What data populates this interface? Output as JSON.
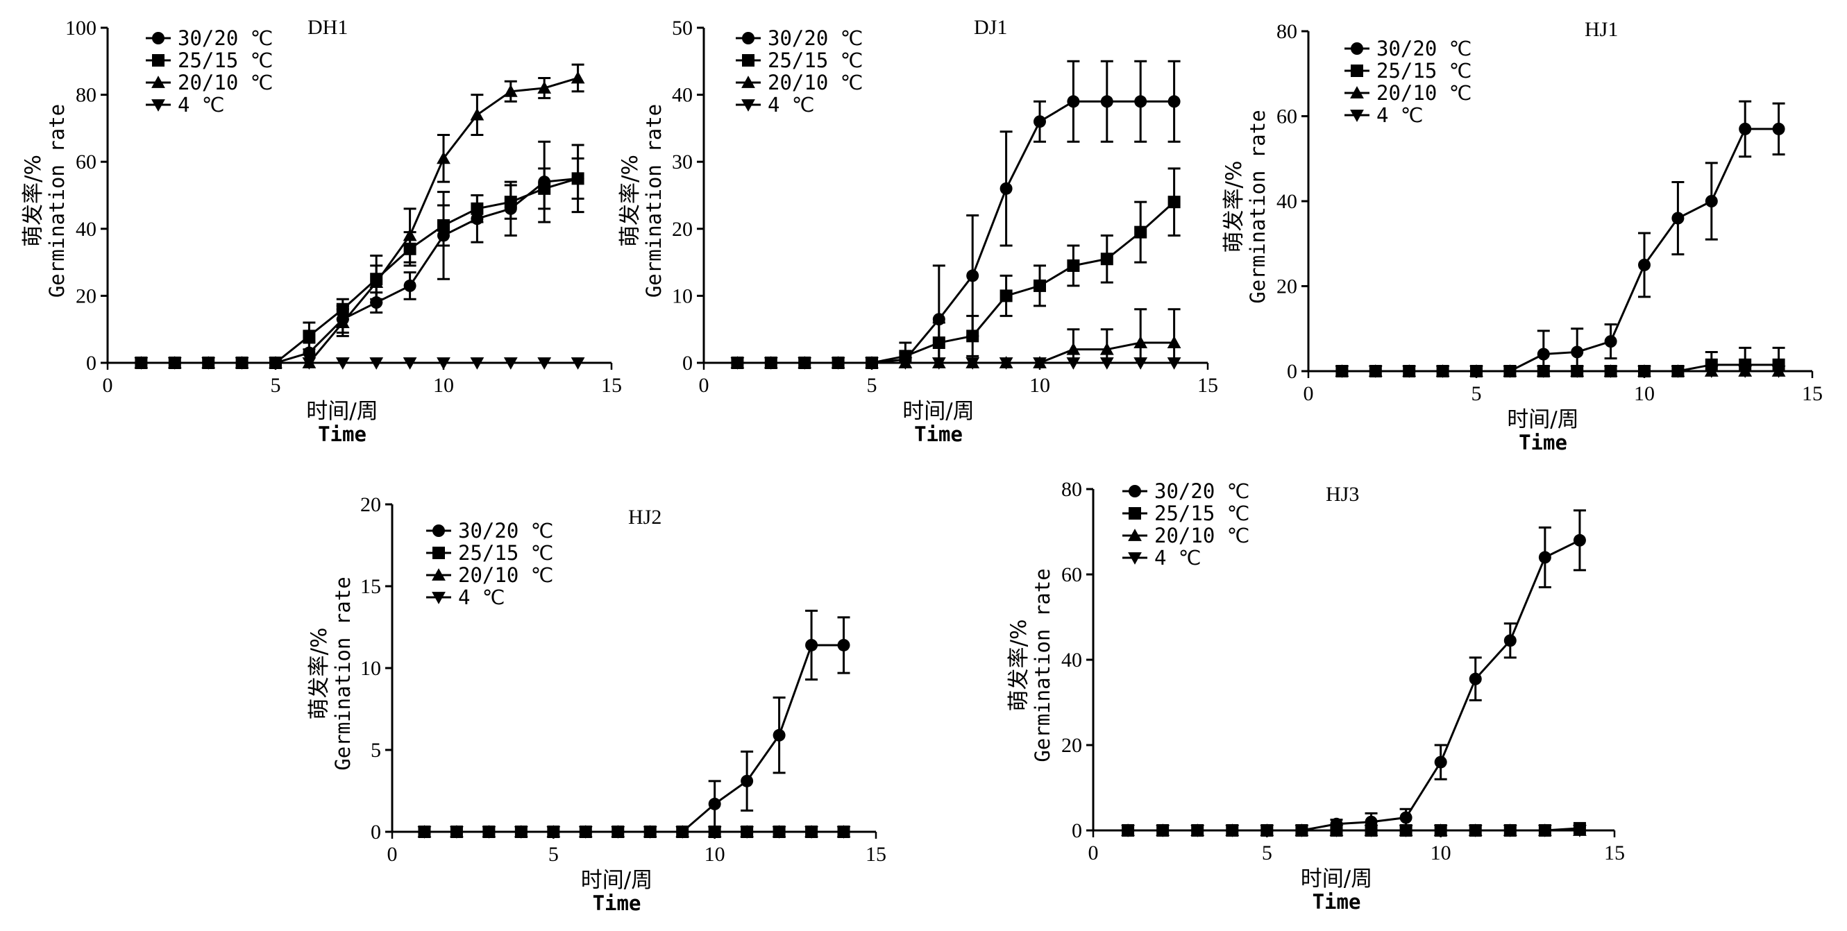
{
  "common": {
    "x_ticks": [
      0,
      5,
      10,
      15
    ],
    "xlabel_cn": "时间/周",
    "xlabel_en": "Time",
    "ylabel_cn": "萌发率/%",
    "ylabel_en": "Germination rate",
    "series_names": [
      "30/20 ℃",
      "25/15 ℃",
      "20/10 ℃",
      "4 ℃"
    ],
    "markers": [
      "circle",
      "square",
      "triangle-up",
      "triangle-down"
    ]
  },
  "chart_data": [
    {
      "type": "line",
      "title": "DH1",
      "xlabel": "时间/周 Time",
      "ylabel": "萌发率/% Germination rate",
      "xlim": [
        0,
        15
      ],
      "ylim": [
        0,
        100
      ],
      "yticks": [
        0,
        20,
        40,
        60,
        80,
        100
      ],
      "x": [
        1,
        2,
        3,
        4,
        5,
        6,
        7,
        8,
        9,
        10,
        11,
        12,
        13,
        14
      ],
      "series": [
        {
          "name": "30/20 ℃",
          "values": [
            0,
            0,
            0,
            0,
            0,
            3,
            13,
            18,
            23,
            38,
            43,
            46,
            54,
            55
          ],
          "errors": [
            0,
            0,
            0,
            0,
            0,
            3,
            4,
            3,
            4,
            13,
            7,
            8,
            12,
            10
          ]
        },
        {
          "name": "25/15 ℃",
          "values": [
            0,
            0,
            0,
            0,
            0,
            8,
            16,
            25,
            34,
            41,
            46,
            48,
            52,
            55
          ],
          "errors": [
            0,
            0,
            0,
            0,
            0,
            4,
            3,
            7,
            5,
            6,
            4,
            5,
            6,
            6
          ]
        },
        {
          "name": "20/10 ℃",
          "values": [
            0,
            0,
            0,
            0,
            0,
            0,
            12,
            24,
            38,
            61,
            74,
            81,
            82,
            85
          ],
          "errors": [
            0,
            0,
            0,
            0,
            0,
            0,
            4,
            5,
            8,
            7,
            6,
            3,
            3,
            4
          ]
        },
        {
          "name": "4 ℃",
          "values": [
            0,
            0,
            0,
            0,
            0,
            0,
            0,
            0,
            0,
            0,
            0,
            0,
            0,
            0
          ],
          "errors": [
            0,
            0,
            0,
            0,
            0,
            0,
            0,
            0,
            0,
            0,
            0,
            0,
            0,
            0
          ]
        }
      ]
    },
    {
      "type": "line",
      "title": "DJ1",
      "xlabel": "时间/周 Time",
      "ylabel": "萌发率/% Germination rate",
      "xlim": [
        0,
        15
      ],
      "ylim": [
        0,
        50
      ],
      "yticks": [
        0,
        10,
        20,
        30,
        40,
        50
      ],
      "x": [
        1,
        2,
        3,
        4,
        5,
        6,
        7,
        8,
        9,
        10,
        11,
        12,
        13,
        14
      ],
      "series": [
        {
          "name": "30/20 ℃",
          "values": [
            0,
            0,
            0,
            0,
            0,
            0.5,
            6.5,
            13,
            26,
            36,
            39,
            39,
            39,
            39
          ],
          "errors": [
            0,
            0,
            0,
            0,
            0,
            1,
            8,
            9,
            8.5,
            3,
            6,
            6,
            6,
            6
          ]
        },
        {
          "name": "25/15 ℃",
          "values": [
            0,
            0,
            0,
            0,
            0,
            1,
            3,
            4,
            10,
            11.5,
            14.5,
            15.5,
            19.5,
            24
          ],
          "errors": [
            0,
            0,
            0,
            0,
            0,
            2,
            3,
            3,
            3,
            3,
            3,
            3.5,
            4.5,
            5
          ]
        },
        {
          "name": "20/10 ℃",
          "values": [
            0,
            0,
            0,
            0,
            0,
            0,
            0,
            0,
            0,
            0,
            2,
            2,
            3,
            3
          ],
          "errors": [
            0,
            0,
            0,
            0,
            0,
            0,
            0,
            0,
            0,
            0,
            3,
            3,
            5,
            5
          ]
        },
        {
          "name": "4 ℃",
          "values": [
            0,
            0,
            0,
            0,
            0,
            0,
            0,
            0,
            0,
            0,
            0,
            0,
            0,
            0
          ],
          "errors": [
            0,
            0,
            0,
            0,
            0,
            0,
            0,
            0,
            0,
            0,
            0,
            0,
            0,
            0
          ]
        }
      ]
    },
    {
      "type": "line",
      "title": "HJ1",
      "xlabel": "时间/周 Time",
      "ylabel": "萌发率/% Germination rate",
      "xlim": [
        0,
        15
      ],
      "ylim": [
        0,
        80
      ],
      "yticks": [
        0,
        20,
        40,
        60,
        80
      ],
      "x": [
        1,
        2,
        3,
        4,
        5,
        6,
        7,
        8,
        9,
        10,
        11,
        12,
        13,
        14
      ],
      "series": [
        {
          "name": "30/20 ℃",
          "values": [
            0,
            0,
            0,
            0,
            0,
            0,
            4,
            4.5,
            7,
            25,
            36,
            40,
            57,
            57
          ],
          "errors": [
            0,
            0,
            0,
            0,
            0,
            0,
            5.5,
            5.5,
            4,
            7.5,
            8.5,
            9,
            6.5,
            6
          ]
        },
        {
          "name": "25/15 ℃",
          "values": [
            0,
            0,
            0,
            0,
            0,
            0,
            0,
            0,
            0,
            0,
            0,
            1.5,
            1.5,
            1.5
          ],
          "errors": [
            0,
            0,
            0,
            0,
            0,
            0,
            0,
            0,
            0,
            0,
            0,
            3,
            4,
            4
          ]
        },
        {
          "name": "20/10 ℃",
          "values": [
            0,
            0,
            0,
            0,
            0,
            0,
            0,
            0,
            0,
            0,
            0,
            0,
            0,
            0
          ],
          "errors": [
            0,
            0,
            0,
            0,
            0,
            0,
            0,
            0,
            0,
            0,
            0,
            0,
            0,
            0
          ]
        },
        {
          "name": "4 ℃",
          "values": [
            0,
            0,
            0,
            0,
            0,
            0,
            0,
            0,
            0,
            0,
            0,
            0,
            0,
            0
          ],
          "errors": [
            0,
            0,
            0,
            0,
            0,
            0,
            0,
            0,
            0,
            0,
            0,
            0,
            0,
            0
          ]
        }
      ]
    },
    {
      "type": "line",
      "title": "HJ2",
      "xlabel": "时间/周 Time",
      "ylabel": "萌发率/% Germination rate",
      "xlim": [
        0,
        15
      ],
      "ylim": [
        0,
        20
      ],
      "yticks": [
        0,
        5,
        10,
        15,
        20
      ],
      "x": [
        1,
        2,
        3,
        4,
        5,
        6,
        7,
        8,
        9,
        10,
        11,
        12,
        13,
        14
      ],
      "series": [
        {
          "name": "30/20 ℃",
          "values": [
            0,
            0,
            0,
            0,
            0,
            0,
            0,
            0,
            0,
            1.7,
            3.1,
            5.9,
            11.4,
            11.4
          ],
          "errors": [
            0,
            0,
            0,
            0,
            0,
            0,
            0,
            0,
            0,
            1.4,
            1.8,
            2.3,
            2.1,
            1.7
          ]
        },
        {
          "name": "25/15 ℃",
          "values": [
            0,
            0,
            0,
            0,
            0,
            0,
            0,
            0,
            0,
            0,
            0,
            0,
            0,
            0
          ],
          "errors": [
            0,
            0,
            0,
            0,
            0,
            0,
            0,
            0,
            0,
            0,
            0,
            0,
            0,
            0
          ]
        },
        {
          "name": "20/10 ℃",
          "values": [
            0,
            0,
            0,
            0,
            0,
            0,
            0,
            0,
            0,
            0,
            0,
            0,
            0,
            0
          ],
          "errors": [
            0,
            0,
            0,
            0,
            0,
            0,
            0,
            0,
            0,
            0,
            0,
            0,
            0,
            0
          ]
        },
        {
          "name": "4 ℃",
          "values": [
            0,
            0,
            0,
            0,
            0,
            0,
            0,
            0,
            0,
            0,
            0,
            0,
            0,
            0
          ],
          "errors": [
            0,
            0,
            0,
            0,
            0,
            0,
            0,
            0,
            0,
            0,
            0,
            0,
            0,
            0
          ]
        }
      ]
    },
    {
      "type": "line",
      "title": "HJ3",
      "xlabel": "时间/周 Time",
      "ylabel": "萌发率/% Germination rate",
      "xlim": [
        0,
        15
      ],
      "ylim": [
        0,
        80
      ],
      "yticks": [
        0,
        20,
        40,
        60,
        80
      ],
      "x": [
        1,
        2,
        3,
        4,
        5,
        6,
        7,
        8,
        9,
        10,
        11,
        12,
        13,
        14
      ],
      "series": [
        {
          "name": "30/20 ℃",
          "values": [
            0,
            0,
            0,
            0,
            0,
            0,
            1.5,
            2,
            3,
            16,
            35.5,
            44.5,
            64,
            68
          ],
          "errors": [
            0,
            0,
            0,
            0,
            0,
            0,
            1,
            2,
            2,
            4,
            5,
            4,
            7,
            7
          ]
        },
        {
          "name": "25/15 ℃",
          "values": [
            0,
            0,
            0,
            0,
            0,
            0,
            0,
            0,
            0,
            0,
            0,
            0,
            0,
            0.5
          ],
          "errors": [
            0,
            0,
            0,
            0,
            0,
            0,
            0,
            0,
            0,
            0,
            0,
            0,
            0,
            0.5
          ]
        },
        {
          "name": "20/10 ℃",
          "values": [
            0,
            0,
            0,
            0,
            0,
            0,
            0,
            0,
            0,
            0,
            0,
            0,
            0,
            0
          ],
          "errors": [
            0,
            0,
            0,
            0,
            0,
            0,
            0,
            0,
            0,
            0,
            0,
            0,
            0,
            0
          ]
        },
        {
          "name": "4 ℃",
          "values": [
            0,
            0,
            0,
            0,
            0,
            0,
            0,
            0,
            0,
            0,
            0,
            0,
            0,
            0
          ],
          "errors": [
            0,
            0,
            0,
            0,
            0,
            0,
            0,
            0,
            0,
            0,
            0,
            0,
            0,
            0
          ]
        }
      ]
    }
  ]
}
